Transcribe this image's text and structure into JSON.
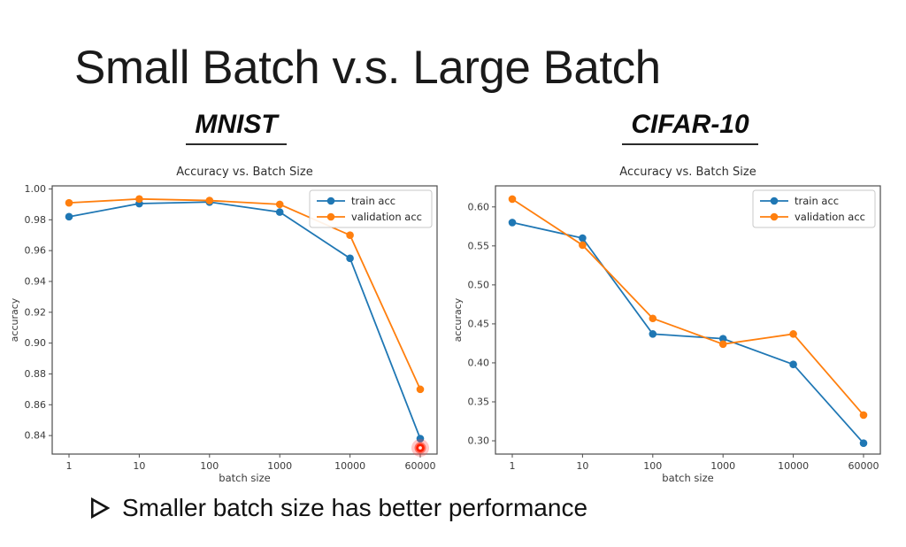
{
  "slide": {
    "title": "Small Batch v.s. Large Batch",
    "bullet": {
      "marker": "➢",
      "text": "Smaller batch size has better performance"
    }
  },
  "colors": {
    "train": "#1f77b4",
    "validation": "#ff7f0e",
    "laser": "#ff2000",
    "axis": "#4d4d4d",
    "chart_text": "#3a3a3a"
  },
  "chart_data": [
    {
      "id": "mnist",
      "type": "line",
      "heading": "MNIST",
      "title": "Accuracy vs. Batch Size",
      "xlabel": "batch size",
      "ylabel": "accuracy",
      "x_scale": "log-equal-spacing",
      "categories": [
        "1",
        "10",
        "100",
        "1000",
        "10000",
        "60000"
      ],
      "yticks": [
        0.84,
        0.86,
        0.88,
        0.9,
        0.92,
        0.94,
        0.96,
        0.98,
        1.0
      ],
      "ylim": [
        0.828,
        1.002
      ],
      "grid": false,
      "legend_position": "upper right",
      "series": [
        {
          "name": "train acc",
          "color": "#1f77b4",
          "values": [
            0.982,
            0.9905,
            0.9915,
            0.985,
            0.955,
            0.838
          ]
        },
        {
          "name": "validation acc",
          "color": "#ff7f0e",
          "values": [
            0.991,
            0.9935,
            0.9925,
            0.99,
            0.97,
            0.87
          ]
        }
      ],
      "annotation": {
        "name": "laser-pointer-dot",
        "color": "#ff2000",
        "at_category": "60000",
        "y": 0.832
      }
    },
    {
      "id": "cifar-10",
      "type": "line",
      "heading": "CIFAR-10",
      "title": "Accuracy vs. Batch Size",
      "xlabel": "batch size",
      "ylabel": "accuracy",
      "x_scale": "log-equal-spacing",
      "categories": [
        "1",
        "10",
        "100",
        "1000",
        "10000",
        "60000"
      ],
      "yticks": [
        0.3,
        0.35,
        0.4,
        0.45,
        0.5,
        0.55,
        0.6
      ],
      "ylim": [
        0.283,
        0.627
      ],
      "grid": false,
      "legend_position": "upper right",
      "series": [
        {
          "name": "train acc",
          "color": "#1f77b4",
          "values": [
            0.58,
            0.56,
            0.437,
            0.431,
            0.398,
            0.297
          ]
        },
        {
          "name": "validation acc",
          "color": "#ff7f0e",
          "values": [
            0.61,
            0.551,
            0.457,
            0.424,
            0.437,
            0.333
          ]
        }
      ]
    }
  ]
}
